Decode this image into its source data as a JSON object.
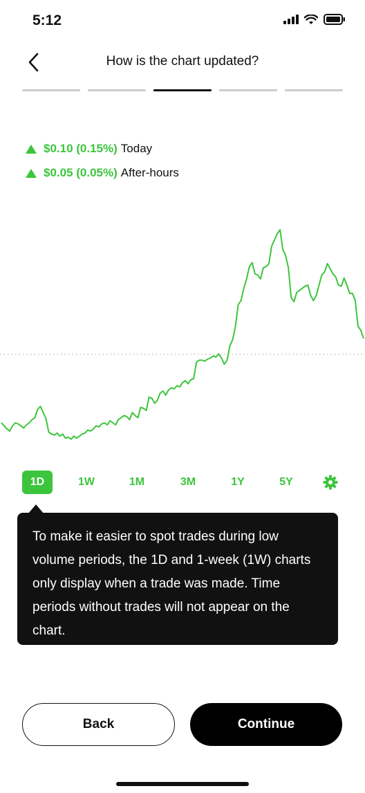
{
  "status_bar": {
    "time": "5:12"
  },
  "header": {
    "title": "How is the chart updated?"
  },
  "progress": {
    "total_steps": 5,
    "current_step": 3
  },
  "price": {
    "today_value": "$0.10 (0.15%)",
    "today_label": "Today",
    "after_hours_value": "$0.05 (0.05%)",
    "after_hours_label": "After-hours"
  },
  "colors": {
    "accent": "#3cc53c",
    "dark": "#111111",
    "muted": "#c9cdd1"
  },
  "chart_data": {
    "type": "line",
    "baseline": "dotted",
    "series": [
      {
        "values": [
          31,
          28,
          25,
          23,
          28,
          31,
          30,
          28,
          26,
          29,
          31,
          34,
          36,
          44,
          47,
          41,
          35,
          22,
          20,
          19,
          21,
          18,
          20,
          16,
          17,
          15,
          18,
          16,
          18,
          20,
          21,
          24,
          23,
          25,
          28,
          27,
          30,
          31,
          29,
          33,
          31,
          29,
          34,
          36,
          38,
          37,
          34,
          41,
          38,
          36,
          46,
          45,
          43,
          56,
          55,
          50,
          53,
          60,
          62,
          58,
          63,
          65,
          64,
          67,
          66,
          70,
          72,
          69,
          73,
          74,
          90,
          92,
          92,
          91,
          93,
          94,
          96,
          95,
          98,
          94,
          88,
          92,
          106,
          112,
          125,
          146,
          150,
          162,
          171,
          183,
          187,
          176,
          175,
          171,
          182,
          183,
          186,
          203,
          209,
          215,
          219,
          200,
          194,
          182,
          153,
          149,
          158,
          160,
          162,
          164,
          165,
          155,
          150,
          155,
          165,
          175,
          178,
          186,
          181,
          176,
          173,
          165,
          164,
          172,
          165,
          157,
          157,
          150,
          125,
          121,
          113
        ]
      }
    ],
    "ranges": [
      "1D",
      "1W",
      "1M",
      "3M",
      "1Y",
      "5Y"
    ],
    "active_range": "1D",
    "settings_icon": "gear-icon"
  },
  "tooltip": {
    "text": "To make it easier to spot trades during low volume periods, the 1D and 1-week (1W) charts only display when a trade was made. Time periods without trades will not appear on the chart."
  },
  "buttons": {
    "back": "Back",
    "continue": "Continue"
  },
  "icons": {
    "status": [
      "signal-icon",
      "wifi-icon",
      "battery-icon"
    ],
    "nav": "back-chevron-icon"
  }
}
